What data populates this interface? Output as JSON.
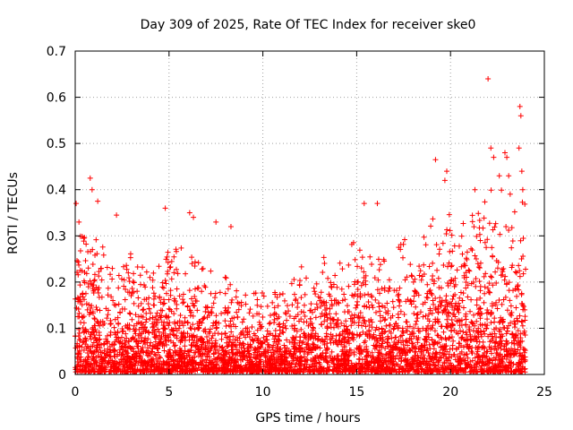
{
  "chart_data": {
    "type": "scatter",
    "title": "Day 309 of 2025, Rate Of TEC Index for receiver ske0",
    "xlabel": "GPS time / hours",
    "ylabel": "ROTI / TECUs",
    "xlim": [
      0,
      25
    ],
    "ylim": [
      0,
      0.7
    ],
    "x_ticks": [
      0,
      5,
      10,
      15,
      20,
      25
    ],
    "x_tick_labels": [
      "0",
      "5",
      "10",
      "15",
      "20",
      "25"
    ],
    "y_ticks": [
      0,
      0.1,
      0.2,
      0.3,
      0.4,
      0.5,
      0.6,
      0.7
    ],
    "y_tick_labels": [
      "0",
      "0.1",
      "0.2",
      "0.3",
      "0.4",
      "0.5",
      "0.6",
      "0.7"
    ],
    "grid": true,
    "marker": "+",
    "color": "#ff0000",
    "envelope": {
      "description": "dense cloud of ROTI samples from 0 to 24 h; upper envelope per hour",
      "hours": [
        0,
        1,
        2,
        3,
        4,
        5,
        6,
        7,
        8,
        9,
        10,
        11,
        12,
        13,
        14,
        15,
        16,
        17,
        18,
        19,
        20,
        21,
        22,
        23,
        24
      ],
      "typical_max": [
        0.3,
        0.3,
        0.22,
        0.25,
        0.22,
        0.28,
        0.25,
        0.22,
        0.2,
        0.18,
        0.17,
        0.17,
        0.22,
        0.25,
        0.25,
        0.28,
        0.25,
        0.25,
        0.3,
        0.32,
        0.33,
        0.35,
        0.38,
        0.38,
        0.35
      ]
    },
    "outliers": [
      {
        "x": 0.05,
        "y": 0.37
      },
      {
        "x": 0.2,
        "y": 0.33
      },
      {
        "x": 0.8,
        "y": 0.425
      },
      {
        "x": 0.9,
        "y": 0.4
      },
      {
        "x": 1.2,
        "y": 0.375
      },
      {
        "x": 2.2,
        "y": 0.345
      },
      {
        "x": 4.8,
        "y": 0.36
      },
      {
        "x": 6.1,
        "y": 0.35
      },
      {
        "x": 6.3,
        "y": 0.34
      },
      {
        "x": 7.5,
        "y": 0.33
      },
      {
        "x": 8.3,
        "y": 0.32
      },
      {
        "x": 15.4,
        "y": 0.37
      },
      {
        "x": 16.1,
        "y": 0.37
      },
      {
        "x": 19.2,
        "y": 0.465
      },
      {
        "x": 19.8,
        "y": 0.44
      },
      {
        "x": 19.7,
        "y": 0.42
      },
      {
        "x": 21.3,
        "y": 0.4
      },
      {
        "x": 22.0,
        "y": 0.64
      },
      {
        "x": 22.15,
        "y": 0.49
      },
      {
        "x": 22.3,
        "y": 0.47
      },
      {
        "x": 22.9,
        "y": 0.48
      },
      {
        "x": 23.0,
        "y": 0.47
      },
      {
        "x": 23.1,
        "y": 0.43
      },
      {
        "x": 23.7,
        "y": 0.58
      },
      {
        "x": 23.75,
        "y": 0.56
      },
      {
        "x": 23.65,
        "y": 0.49
      },
      {
        "x": 23.8,
        "y": 0.44
      },
      {
        "x": 23.85,
        "y": 0.4
      },
      {
        "x": 22.6,
        "y": 0.43
      }
    ]
  }
}
